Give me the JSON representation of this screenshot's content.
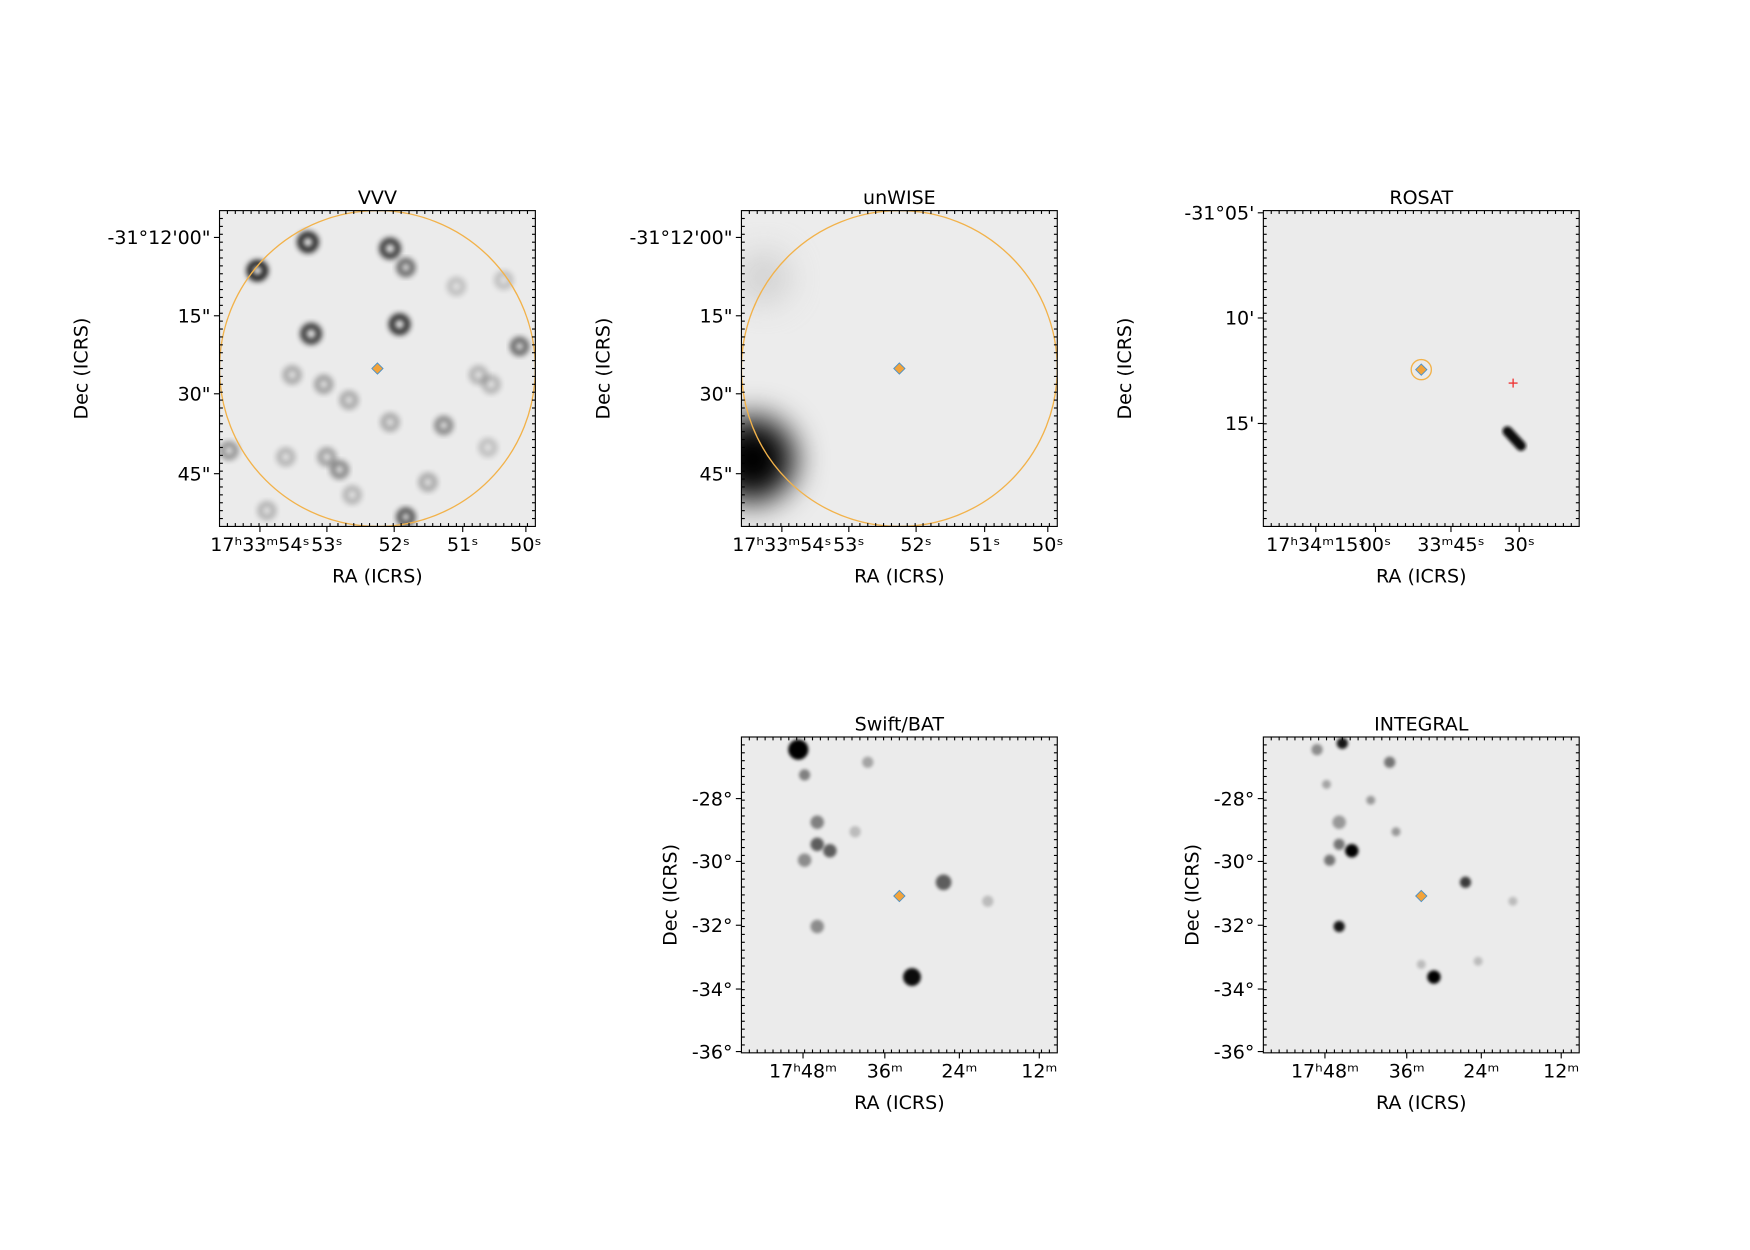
{
  "panels": [
    {
      "title": "VVV",
      "xlabel": "RA (ICRS)",
      "ylabel": "Dec (ICRS)",
      "xticks": [
        "17ʰ33ᵐ54ˢ",
        "53ˢ",
        "52ˢ",
        "51ˢ",
        "50ˢ"
      ],
      "yticks": [
        "-31°12'00\"",
        "15\"",
        "30\"",
        "45\""
      ]
    },
    {
      "title": "unWISE",
      "xlabel": "RA (ICRS)",
      "ylabel": "Dec (ICRS)",
      "xticks": [
        "17ʰ33ᵐ54ˢ",
        "53ˢ",
        "52ˢ",
        "51ˢ",
        "50ˢ"
      ],
      "yticks": [
        "-31°12'00\"",
        "15\"",
        "30\"",
        "45\""
      ]
    },
    {
      "title": "ROSAT",
      "xlabel": "RA (ICRS)",
      "ylabel": "Dec (ICRS)",
      "xticks": [
        "17ʰ34ᵐ15ˢ",
        "00ˢ",
        "33ᵐ45ˢ",
        "30ˢ"
      ],
      "yticks": [
        "-31°05'",
        "10'",
        "15'"
      ]
    },
    {
      "title": "Swift/BAT",
      "xlabel": "RA (ICRS)",
      "ylabel": "Dec (ICRS)",
      "xticks": [
        "17ʰ48ᵐ",
        "36ᵐ",
        "24ᵐ",
        "12ᵐ"
      ],
      "yticks": [
        "-28°",
        "-30°",
        "-32°",
        "-34°",
        "-36°"
      ]
    },
    {
      "title": "INTEGRAL",
      "xlabel": "RA (ICRS)",
      "ylabel": "Dec (ICRS)",
      "xticks": [
        "17ʰ48ᵐ",
        "36ᵐ",
        "24ᵐ",
        "12ᵐ"
      ],
      "yticks": [
        "-28°",
        "-30°",
        "-32°",
        "-34°",
        "-36°"
      ]
    }
  ]
}
